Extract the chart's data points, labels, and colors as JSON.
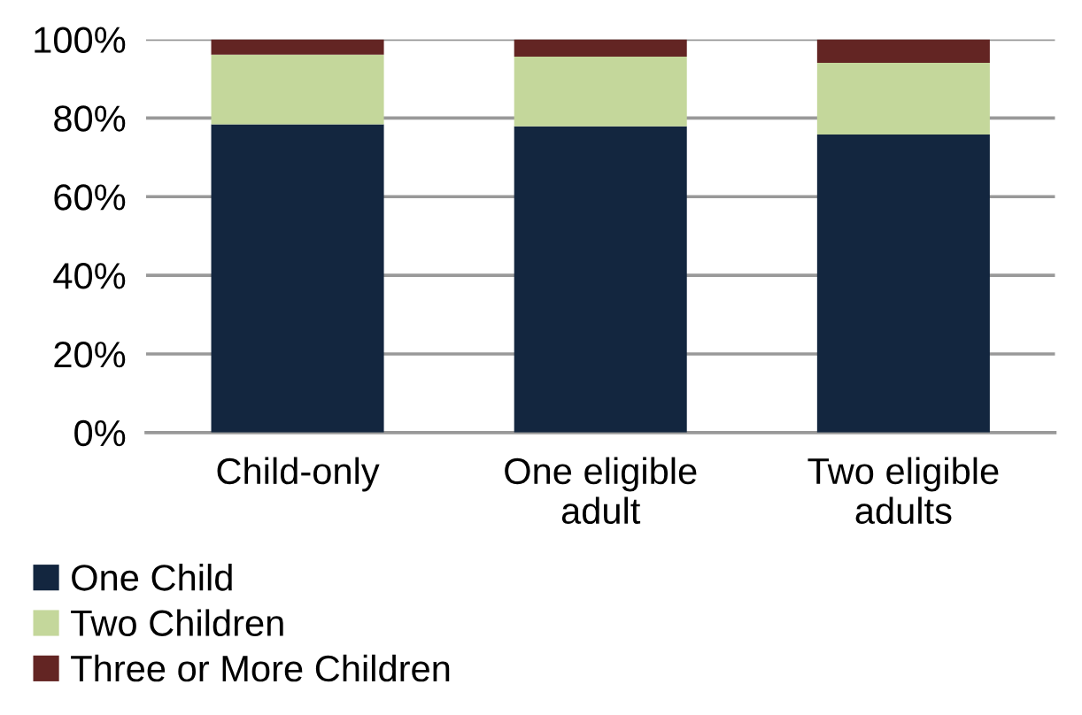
{
  "chart_data": {
    "type": "bar",
    "stacked": true,
    "categories": [
      "Child-only",
      "One eligible\nadult",
      "Two eligible\nadults"
    ],
    "series": [
      {
        "name": "One Child",
        "color": "#13263f",
        "values": [
          78.4,
          77.9,
          75.8
        ]
      },
      {
        "name": "Two Children",
        "color": "#c4d79b",
        "values": [
          17.7,
          17.7,
          18.2
        ]
      },
      {
        "name": "Three or More Children",
        "color": "#632523",
        "values": [
          3.9,
          4.4,
          6.0
        ]
      }
    ],
    "ylim": [
      0,
      100
    ],
    "yticks": [
      {
        "value": 0,
        "label": "0%"
      },
      {
        "value": 20,
        "label": "20%"
      },
      {
        "value": 40,
        "label": "40%"
      },
      {
        "value": 60,
        "label": "60%"
      },
      {
        "value": 80,
        "label": "80%"
      },
      {
        "value": 100,
        "label": "100%"
      }
    ],
    "grid": "y",
    "legend": "bottom"
  }
}
